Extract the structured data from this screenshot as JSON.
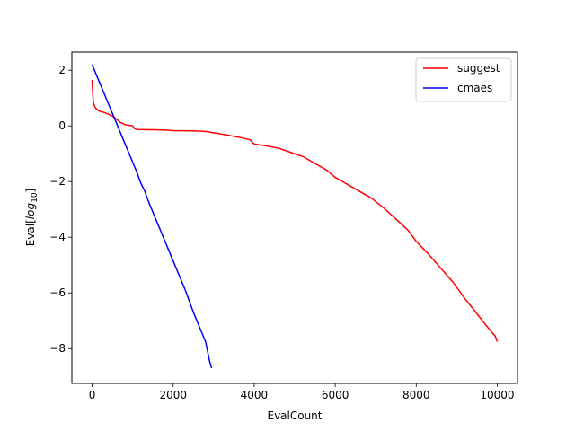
{
  "chart_data": {
    "type": "line",
    "xlabel": "EvalCount",
    "ylabel_prefix": "Eval[",
    "ylabel_log": "log",
    "ylabel_sub": "10",
    "ylabel_suffix": "]",
    "xlim": [
      -500,
      10500
    ],
    "ylim": [
      -9.25,
      2.65
    ],
    "xticks": [
      0,
      2000,
      4000,
      6000,
      8000,
      10000
    ],
    "yticks": [
      2,
      0,
      -2,
      -4,
      -6,
      -8
    ],
    "grid": false,
    "legend_position": "top-right",
    "series": [
      {
        "name": "suggest",
        "color": "#ff0000",
        "x": [
          0,
          10,
          30,
          60,
          100,
          150,
          200,
          300,
          400,
          500,
          600,
          700,
          800,
          900,
          1000,
          1050,
          1100,
          1500,
          1800,
          2000,
          2500,
          2800,
          3000,
          3300,
          3600,
          3900,
          4000,
          4300,
          4600,
          4900,
          5200,
          5500,
          5800,
          6000,
          6300,
          6600,
          6900,
          7200,
          7500,
          7800,
          8000,
          8300,
          8600,
          8900,
          9200,
          9500,
          9800,
          9950,
          10000
        ],
        "y": [
          1.65,
          1.3,
          0.85,
          0.7,
          0.62,
          0.55,
          0.52,
          0.48,
          0.42,
          0.35,
          0.25,
          0.12,
          0.05,
          0.02,
          0.0,
          -0.1,
          -0.13,
          -0.14,
          -0.15,
          -0.17,
          -0.18,
          -0.2,
          -0.25,
          -0.32,
          -0.4,
          -0.5,
          -0.65,
          -0.72,
          -0.8,
          -0.95,
          -1.1,
          -1.35,
          -1.6,
          -1.85,
          -2.1,
          -2.35,
          -2.6,
          -2.95,
          -3.35,
          -3.75,
          -4.15,
          -4.6,
          -5.1,
          -5.6,
          -6.2,
          -6.75,
          -7.3,
          -7.55,
          -7.75
        ]
      },
      {
        "name": "cmaes",
        "color": "#0000ff",
        "x": [
          0,
          100,
          200,
          300,
          400,
          500,
          600,
          700,
          800,
          900,
          1000,
          1100,
          1200,
          1300,
          1400,
          1500,
          1600,
          1700,
          1800,
          1900,
          2000,
          2100,
          2200,
          2300,
          2400,
          2500,
          2600,
          2700,
          2800,
          2850,
          2900,
          2950
        ],
        "y": [
          2.2,
          1.85,
          1.5,
          1.15,
          0.8,
          0.45,
          0.1,
          -0.25,
          -0.6,
          -0.95,
          -1.3,
          -1.65,
          -2.05,
          -2.35,
          -2.75,
          -3.1,
          -3.45,
          -3.8,
          -4.15,
          -4.5,
          -4.85,
          -5.2,
          -5.55,
          -5.9,
          -6.3,
          -6.7,
          -7.05,
          -7.4,
          -7.75,
          -8.1,
          -8.45,
          -8.7
        ]
      }
    ]
  }
}
